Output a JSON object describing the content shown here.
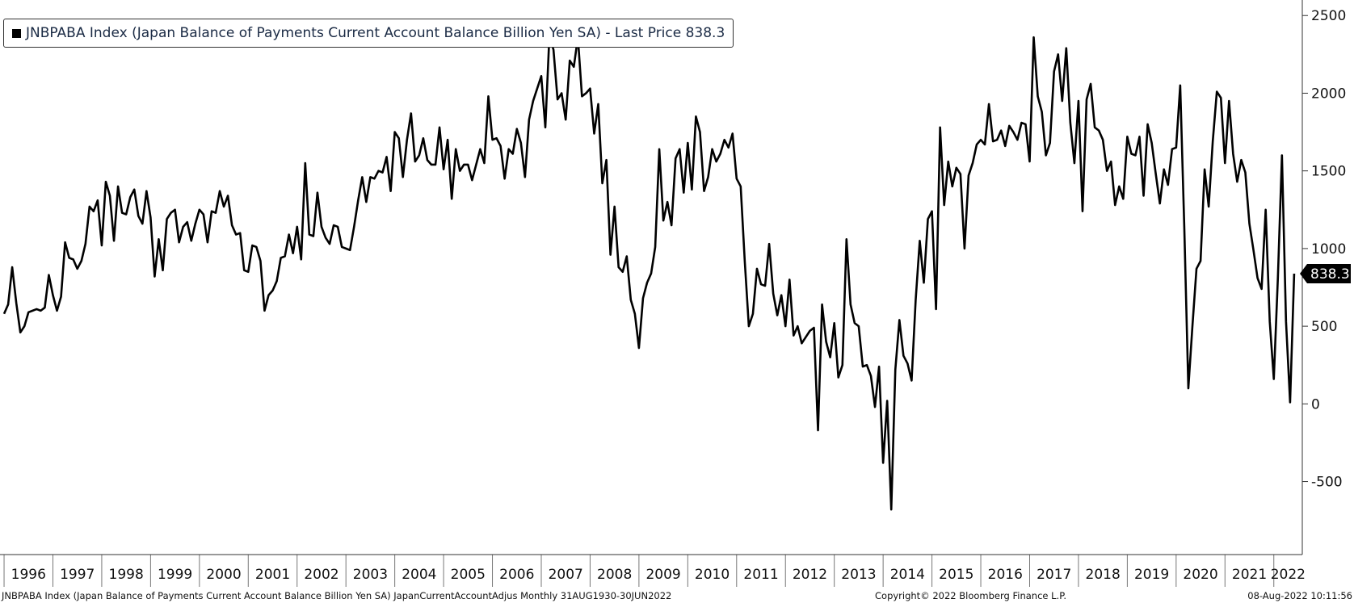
{
  "legend": {
    "text": "JNBPABA Index (Japan Balance of Payments Current Account Balance Billion Yen SA) - Last Price 838.3"
  },
  "last_price_label": "838.3",
  "footer": {
    "left": "JNBPABA Index (Japan Balance of Payments Current Account Balance Billion Yen SA) JapanCurrentAccountAdjus  Monthly 31AUG1930-30JUN2022",
    "center": "Copyright© 2022 Bloomberg Finance L.P.",
    "right": "08-Aug-2022 10:11:56"
  },
  "colors": {
    "line": "#000000",
    "axis": "#333333",
    "background": "#ffffff"
  },
  "chart_data": {
    "type": "line",
    "title": "",
    "xlabel": "",
    "ylabel": "",
    "x_ticks": [
      "1996",
      "1997",
      "1998",
      "1999",
      "2000",
      "2001",
      "2002",
      "2003",
      "2004",
      "2005",
      "2006",
      "2007",
      "2008",
      "2009",
      "2010",
      "2011",
      "2012",
      "2013",
      "2014",
      "2015",
      "2016",
      "2017",
      "2018",
      "2019",
      "2020",
      "2021",
      "2022"
    ],
    "y_ticks": [
      2500,
      2000,
      1500,
      1000,
      500,
      0,
      -500
    ],
    "ylim": [
      -970,
      2600
    ],
    "y_axis_side": "right",
    "grid": false,
    "legend_placement": "top-left",
    "series": [
      {
        "name": "JNBPABA Index (Japan Balance of Payments Current Account Balance Billion Yen SA)",
        "x": [
          "1996-01",
          "1996-02",
          "1996-03",
          "1996-04",
          "1996-05",
          "1996-06",
          "1996-07",
          "1996-08",
          "1996-09",
          "1996-10",
          "1996-11",
          "1996-12",
          "1997-01",
          "1997-02",
          "1997-03",
          "1997-04",
          "1997-05",
          "1997-06",
          "1997-07",
          "1997-08",
          "1997-09",
          "1997-10",
          "1997-11",
          "1997-12",
          "1998-01",
          "1998-02",
          "1998-03",
          "1998-04",
          "1998-05",
          "1998-06",
          "1998-07",
          "1998-08",
          "1998-09",
          "1998-10",
          "1998-11",
          "1998-12",
          "1999-01",
          "1999-02",
          "1999-03",
          "1999-04",
          "1999-05",
          "1999-06",
          "1999-07",
          "1999-08",
          "1999-09",
          "1999-10",
          "1999-11",
          "1999-12",
          "2000-01",
          "2000-02",
          "2000-03",
          "2000-04",
          "2000-05",
          "2000-06",
          "2000-07",
          "2000-08",
          "2000-09",
          "2000-10",
          "2000-11",
          "2000-12",
          "2001-01",
          "2001-02",
          "2001-03",
          "2001-04",
          "2001-05",
          "2001-06",
          "2001-07",
          "2001-08",
          "2001-09",
          "2001-10",
          "2001-11",
          "2001-12",
          "2002-01",
          "2002-02",
          "2002-03",
          "2002-04",
          "2002-05",
          "2002-06",
          "2002-07",
          "2002-08",
          "2002-09",
          "2002-10",
          "2002-11",
          "2002-12",
          "2003-01",
          "2003-02",
          "2003-03",
          "2003-04",
          "2003-05",
          "2003-06",
          "2003-07",
          "2003-08",
          "2003-09",
          "2003-10",
          "2003-11",
          "2003-12",
          "2004-01",
          "2004-02",
          "2004-03",
          "2004-04",
          "2004-05",
          "2004-06",
          "2004-07",
          "2004-08",
          "2004-09",
          "2004-10",
          "2004-11",
          "2004-12",
          "2005-01",
          "2005-02",
          "2005-03",
          "2005-04",
          "2005-05",
          "2005-06",
          "2005-07",
          "2005-08",
          "2005-09",
          "2005-10",
          "2005-11",
          "2005-12",
          "2006-01",
          "2006-02",
          "2006-03",
          "2006-04",
          "2006-05",
          "2006-06",
          "2006-07",
          "2006-08",
          "2006-09",
          "2006-10",
          "2006-11",
          "2006-12",
          "2007-01",
          "2007-02",
          "2007-03",
          "2007-04",
          "2007-05",
          "2007-06",
          "2007-07",
          "2007-08",
          "2007-09",
          "2007-10",
          "2007-11",
          "2007-12",
          "2008-01",
          "2008-02",
          "2008-03",
          "2008-04",
          "2008-05",
          "2008-06",
          "2008-07",
          "2008-08",
          "2008-09",
          "2008-10",
          "2008-11",
          "2008-12",
          "2009-01",
          "2009-02",
          "2009-03",
          "2009-04",
          "2009-05",
          "2009-06",
          "2009-07",
          "2009-08",
          "2009-09",
          "2009-10",
          "2009-11",
          "2009-12",
          "2010-01",
          "2010-02",
          "2010-03",
          "2010-04",
          "2010-05",
          "2010-06",
          "2010-07",
          "2010-08",
          "2010-09",
          "2010-10",
          "2010-11",
          "2010-12",
          "2011-01",
          "2011-02",
          "2011-03",
          "2011-04",
          "2011-05",
          "2011-06",
          "2011-07",
          "2011-08",
          "2011-09",
          "2011-10",
          "2011-11",
          "2011-12",
          "2012-01",
          "2012-02",
          "2012-03",
          "2012-04",
          "2012-05",
          "2012-06",
          "2012-07",
          "2012-08",
          "2012-09",
          "2012-10",
          "2012-11",
          "2012-12",
          "2013-01",
          "2013-02",
          "2013-03",
          "2013-04",
          "2013-05",
          "2013-06",
          "2013-07",
          "2013-08",
          "2013-09",
          "2013-10",
          "2013-11",
          "2013-12",
          "2014-01",
          "2014-02",
          "2014-03",
          "2014-04",
          "2014-05",
          "2014-06",
          "2014-07",
          "2014-08",
          "2014-09",
          "2014-10",
          "2014-11",
          "2014-12",
          "2015-01",
          "2015-02",
          "2015-03",
          "2015-04",
          "2015-05",
          "2015-06",
          "2015-07",
          "2015-08",
          "2015-09",
          "2015-10",
          "2015-11",
          "2015-12",
          "2016-01",
          "2016-02",
          "2016-03",
          "2016-04",
          "2016-05",
          "2016-06",
          "2016-07",
          "2016-08",
          "2016-09",
          "2016-10",
          "2016-11",
          "2016-12",
          "2017-01",
          "2017-02",
          "2017-03",
          "2017-04",
          "2017-05",
          "2017-06",
          "2017-07",
          "2017-08",
          "2017-09",
          "2017-10",
          "2017-11",
          "2017-12",
          "2018-01",
          "2018-02",
          "2018-03",
          "2018-04",
          "2018-05",
          "2018-06",
          "2018-07",
          "2018-08",
          "2018-09",
          "2018-10",
          "2018-11",
          "2018-12",
          "2019-01",
          "2019-02",
          "2019-03",
          "2019-04",
          "2019-05",
          "2019-06",
          "2019-07",
          "2019-08",
          "2019-09",
          "2019-10",
          "2019-11",
          "2019-12",
          "2020-01",
          "2020-02",
          "2020-03",
          "2020-04",
          "2020-05",
          "2020-06",
          "2020-07",
          "2020-08",
          "2020-09",
          "2020-10",
          "2020-11",
          "2020-12",
          "2021-01",
          "2021-02",
          "2021-03",
          "2021-04",
          "2021-05",
          "2021-06",
          "2021-07",
          "2021-08",
          "2021-09",
          "2021-10",
          "2021-11",
          "2021-12",
          "2022-01",
          "2022-02",
          "2022-03",
          "2022-04",
          "2022-05",
          "2022-06"
        ],
        "values": [
          580,
          640,
          880,
          650,
          460,
          500,
          590,
          600,
          610,
          600,
          620,
          830,
          700,
          600,
          690,
          1040,
          940,
          930,
          870,
          920,
          1030,
          1270,
          1240,
          1310,
          1020,
          1430,
          1340,
          1050,
          1400,
          1230,
          1220,
          1330,
          1380,
          1210,
          1160,
          1370,
          1200,
          820,
          1060,
          860,
          1190,
          1230,
          1250,
          1040,
          1140,
          1170,
          1050,
          1160,
          1250,
          1220,
          1040,
          1240,
          1230,
          1370,
          1270,
          1340,
          1150,
          1090,
          1100,
          860,
          850,
          1020,
          1010,
          920,
          600,
          700,
          730,
          790,
          940,
          950,
          1090,
          970,
          1140,
          930,
          1550,
          1090,
          1080,
          1360,
          1140,
          1070,
          1030,
          1150,
          1140,
          1010,
          1000,
          990,
          1140,
          1310,
          1460,
          1300,
          1460,
          1450,
          1500,
          1490,
          1590,
          1370,
          1750,
          1710,
          1460,
          1700,
          1870,
          1560,
          1600,
          1710,
          1570,
          1540,
          1540,
          1780,
          1510,
          1700,
          1320,
          1640,
          1500,
          1540,
          1540,
          1440,
          1540,
          1640,
          1550,
          1980,
          1700,
          1710,
          1660,
          1450,
          1640,
          1610,
          1770,
          1680,
          1460,
          1830,
          1950,
          2030,
          2110,
          1780,
          2370,
          2280,
          1960,
          2000,
          1830,
          2210,
          2170,
          2360,
          1980,
          2000,
          2030,
          1740,
          1930,
          1420,
          1570,
          960,
          1270,
          880,
          850,
          950,
          670,
          580,
          360,
          680,
          780,
          840,
          1010,
          1640,
          1180,
          1300,
          1150,
          1580,
          1640,
          1360,
          1680,
          1380,
          1850,
          1750,
          1370,
          1460,
          1640,
          1560,
          1610,
          1700,
          1650,
          1740,
          1450,
          1400,
          920,
          500,
          580,
          870,
          770,
          760,
          1030,
          710,
          570,
          700,
          500,
          800,
          440,
          500,
          390,
          430,
          470,
          490,
          -170,
          640,
          400,
          300,
          520,
          170,
          250,
          1060,
          640,
          520,
          500,
          240,
          250,
          180,
          -20,
          240,
          -380,
          20,
          -680,
          220,
          540,
          310,
          260,
          150,
          670,
          1050,
          780,
          1190,
          1240,
          610,
          1780,
          1280,
          1560,
          1400,
          1520,
          1480,
          1000,
          1470,
          1550,
          1670,
          1700,
          1670,
          1930,
          1690,
          1700,
          1760,
          1660,
          1790,
          1750,
          1700,
          1810,
          1800,
          1560,
          2360,
          1980,
          1880,
          1600,
          1680,
          2140,
          2250,
          1950,
          2290,
          1810,
          1550,
          1950,
          1240,
          1960,
          2060,
          1780,
          1760,
          1700,
          1500,
          1560,
          1280,
          1400,
          1320,
          1720,
          1610,
          1600,
          1720,
          1340,
          1800,
          1680,
          1480,
          1290,
          1510,
          1410,
          1640,
          1650,
          2050,
          1140,
          100,
          500,
          870,
          920,
          1510,
          1270,
          1690,
          2010,
          1970,
          1550,
          1950,
          1610,
          1430,
          1570,
          1490,
          1160,
          990,
          810,
          740,
          1250,
          530,
          160,
          810,
          1600,
          530,
          10,
          838.3
        ]
      }
    ]
  }
}
